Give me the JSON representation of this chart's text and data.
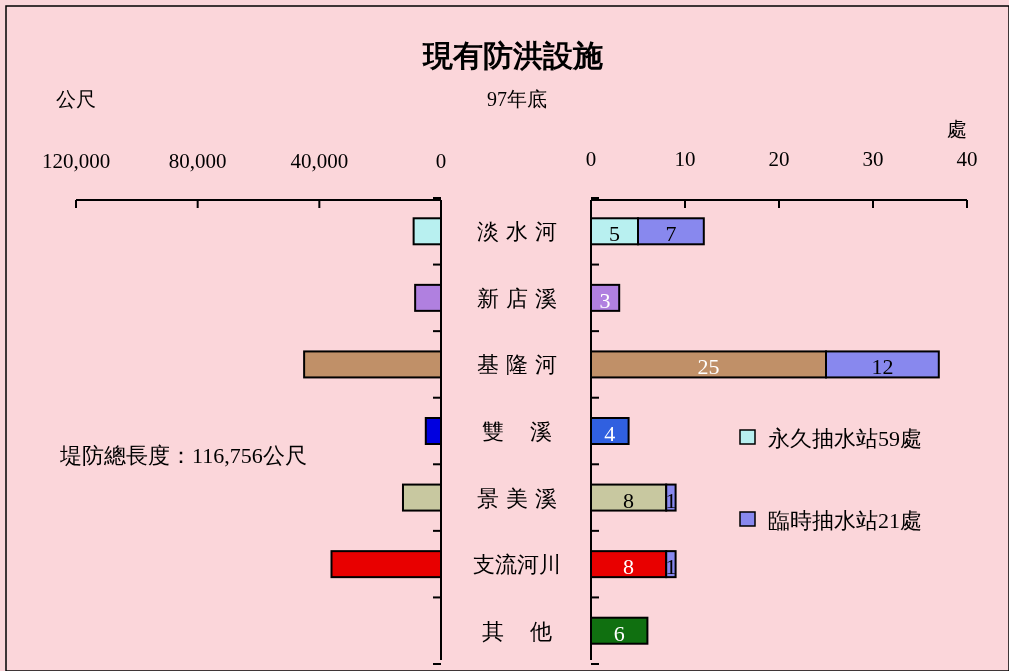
{
  "chart_data": [
    {
      "type": "bar",
      "orientation": "horizontal",
      "title": "現有防洪設施",
      "subtitle": "97年底",
      "xlabel": "公尺",
      "categories": [
        "淡水河",
        "新店溪",
        "基隆河",
        "雙溪",
        "景美溪",
        "支流河川",
        "其他"
      ],
      "values": [
        9000,
        8500,
        45000,
        5000,
        12500,
        36000,
        null
      ],
      "colors": [
        "#b8f0f0",
        "#b080e0",
        "#c09068",
        "#0000e0",
        "#c8c8a0",
        "#e80000",
        null
      ],
      "xlim": [
        120000,
        0
      ],
      "xticks": [
        {
          "value": 120000,
          "label": "120,000"
        },
        {
          "value": 80000,
          "label": "80,000"
        },
        {
          "value": 40000,
          "label": "40,000"
        },
        0
      ],
      "annotations": [
        "堤防總長度：116,756公尺"
      ],
      "grid": false
    },
    {
      "type": "bar",
      "orientation": "horizontal",
      "stacked": true,
      "xlabel": "處",
      "categories": [
        null,
        null,
        null,
        null,
        null,
        null,
        null
      ],
      "series": [
        {
          "name": "永久抽水站59處",
          "color": "#b8f0f0",
          "colors": [
            "#b8f0f0",
            "#b080e0",
            "#c09068",
            "#3060e0",
            "#c8c8a0",
            "#e80000",
            "#107010"
          ],
          "values": [
            5,
            3,
            25,
            4,
            8,
            8,
            6
          ]
        },
        {
          "name": "臨時抽水站21處",
          "color": "#8888ee",
          "values": [
            7,
            null,
            12,
            null,
            1,
            1,
            null
          ]
        }
      ],
      "xlim": [
        0,
        40
      ],
      "xticks": [
        0,
        10,
        20,
        30,
        40
      ],
      "tick_labels": "x",
      "data_labels": true,
      "legend": "right",
      "grid": false
    }
  ]
}
